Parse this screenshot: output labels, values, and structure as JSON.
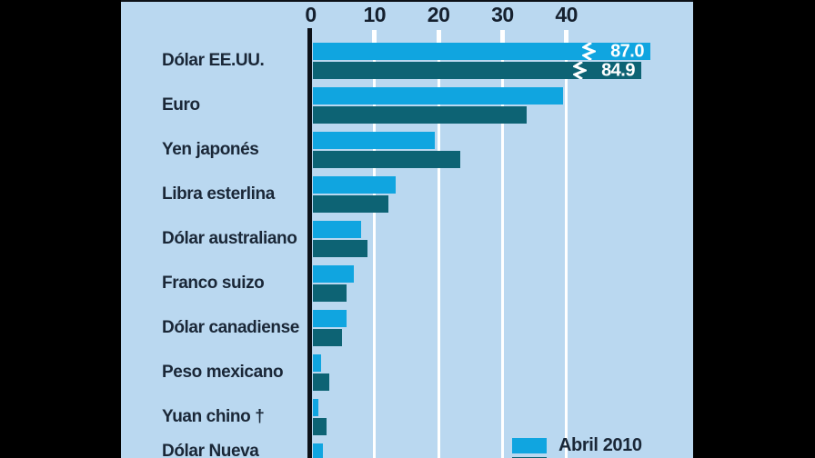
{
  "window": {
    "background": "#000000"
  },
  "panel": {
    "background": "#bad8f0"
  },
  "colors": {
    "series_light_blue": "#10a5e0",
    "series_dark_teal": "#0d6374",
    "label_navy": "#1a2737",
    "gridline_white": "#ffffff",
    "axis_black": "#0c1118",
    "bar_value_white": "#ffffff"
  },
  "chart_data": {
    "type": "bar",
    "orientation": "horizontal",
    "title": "",
    "categories": [
      "Dólar EE.UU.",
      "Euro",
      "Yen japonés",
      "Libra esterlina",
      "Dólar australiano",
      "Franco suizo",
      "Dólar canadiense",
      "Peso mexicano",
      "Yuan chino †",
      "Dólar Nueva"
    ],
    "series": [
      {
        "name": "light-blue",
        "color": "#10a5e0",
        "values": [
          87.0,
          39.1,
          19.0,
          12.9,
          7.6,
          6.4,
          5.3,
          1.3,
          0.9,
          1.6
        ]
      },
      {
        "name": "dark-teal",
        "color": "#0d6374",
        "values": [
          84.9,
          33.4,
          23.0,
          11.8,
          8.6,
          5.2,
          4.6,
          2.5,
          2.2,
          2.0
        ]
      }
    ],
    "bar_value_labels": {
      "category": "Dólar EE.UU.",
      "light": "87.0",
      "dark": "84.9",
      "truncated_with_break_marks": true
    },
    "xticks": [
      0,
      10,
      20,
      30,
      40
    ],
    "xlim": [
      0,
      45
    ],
    "grid": "white vertical gridlines, axis on top",
    "legend": {
      "position": "bottom-right",
      "items": [
        {
          "label": "Abril 2010",
          "swatch": "light-blue"
        }
      ],
      "second_row_partially_visible": true
    },
    "footnote_marker": "†"
  }
}
